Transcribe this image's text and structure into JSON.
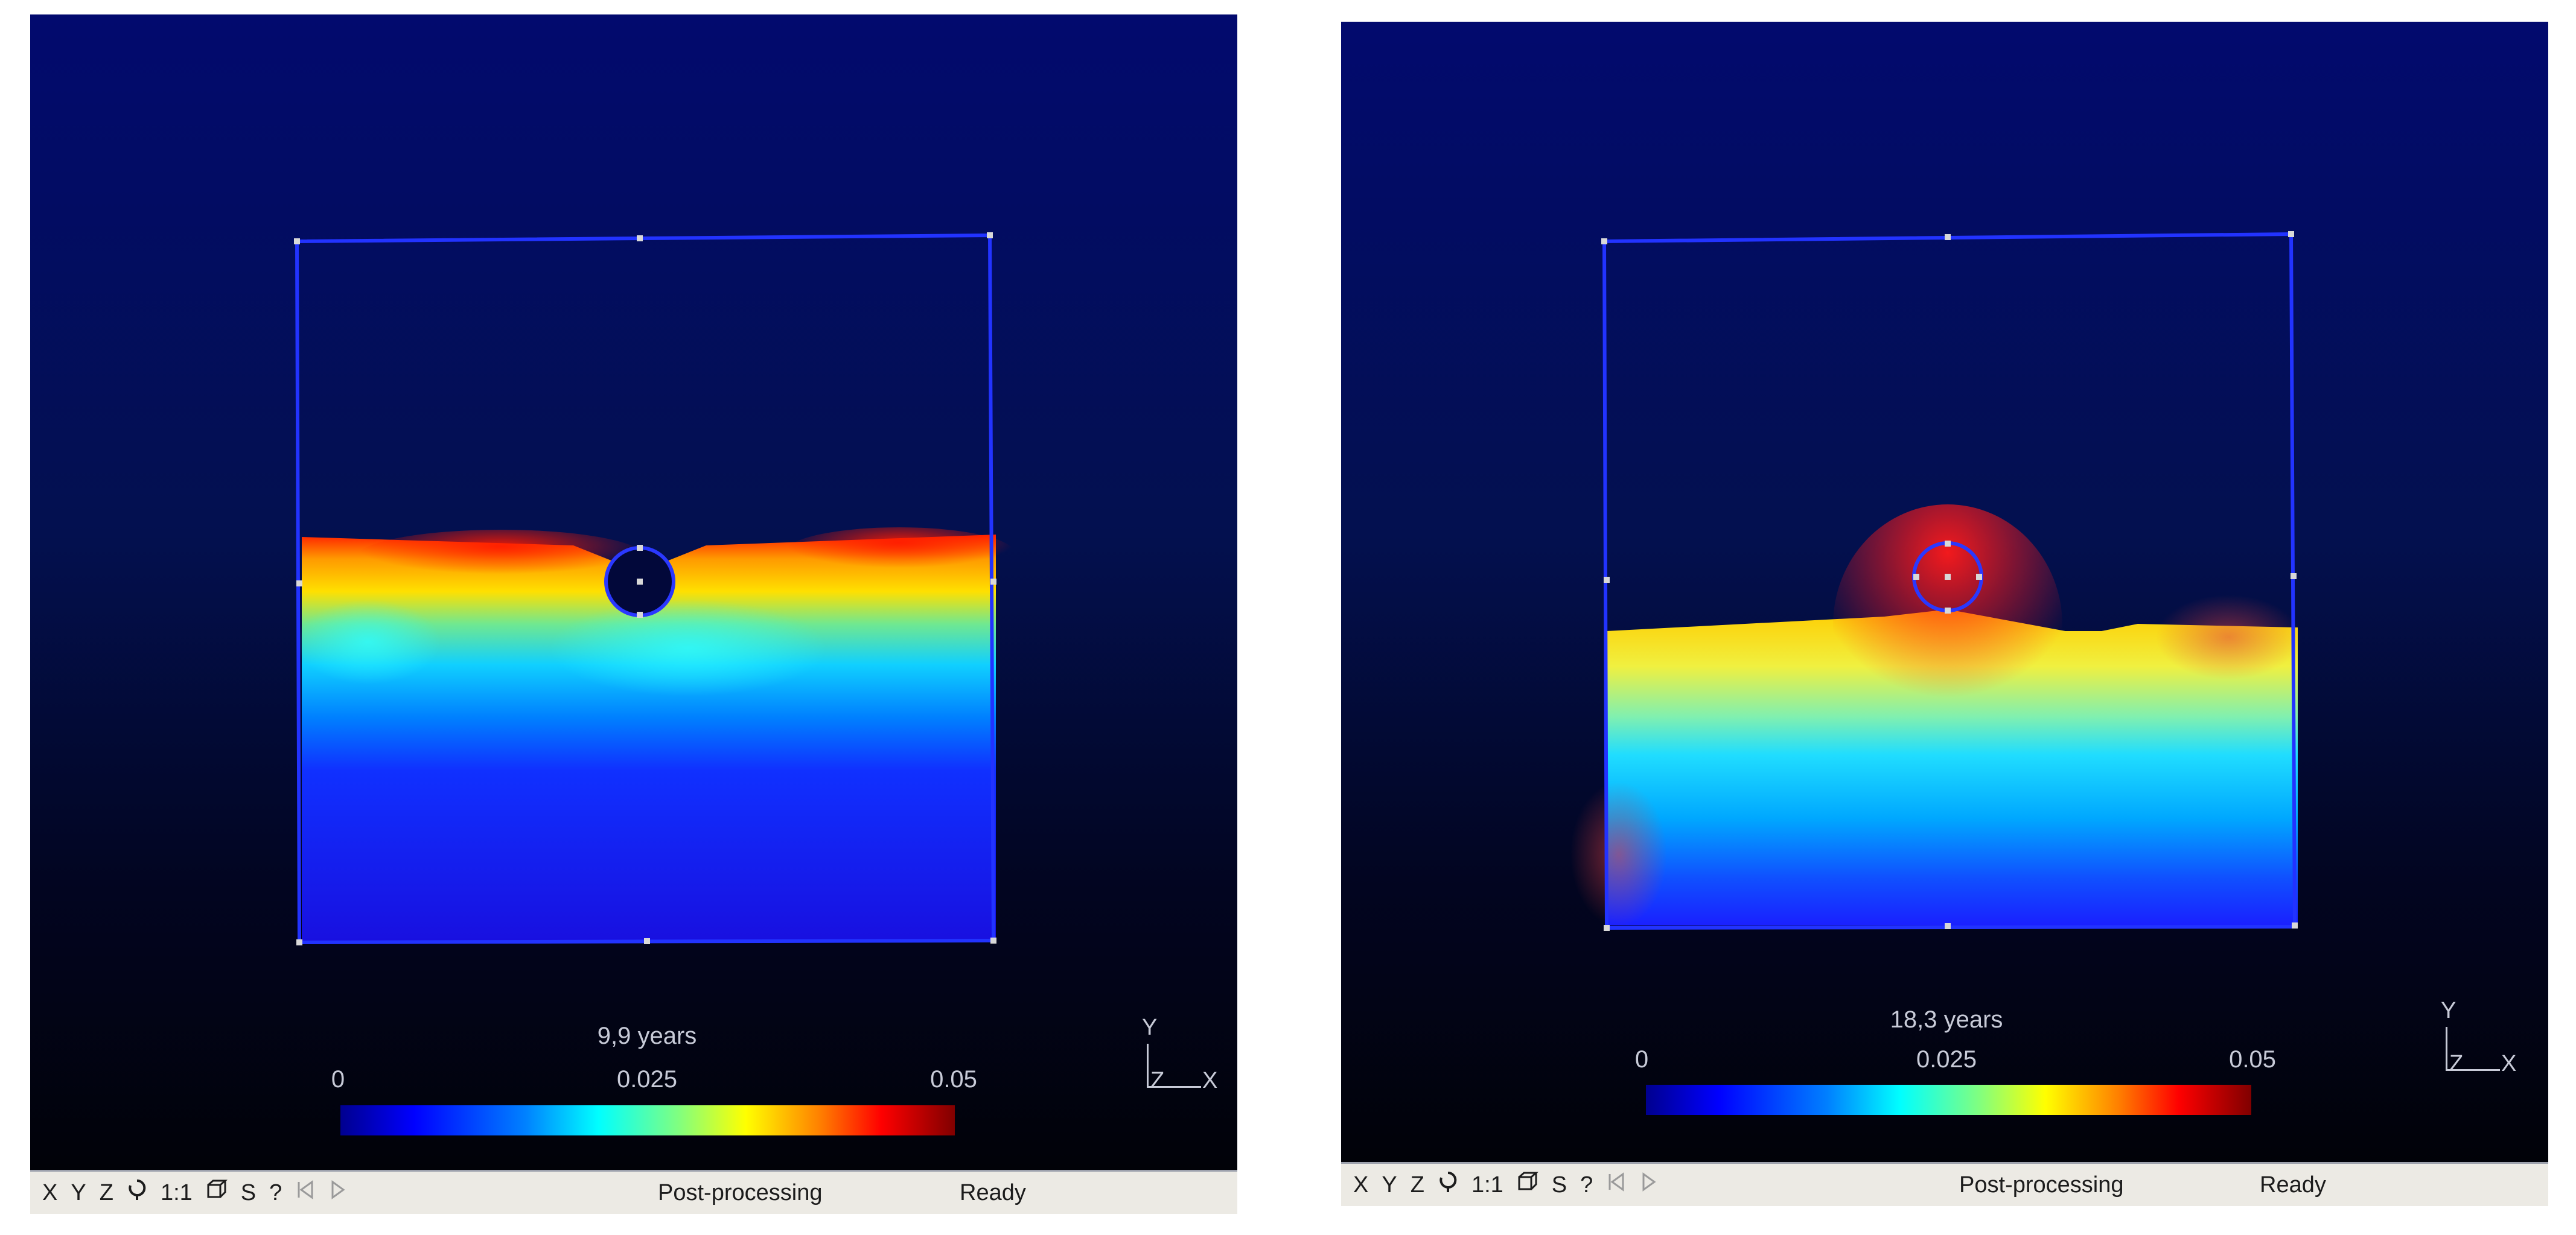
{
  "panels": [
    {
      "sim_label": "9,9 years",
      "colorbar_ticks": [
        "0",
        "0.025",
        "0.05"
      ],
      "axis_labels": {
        "y": "Y",
        "z": "Z",
        "x": "X"
      },
      "status_mode": "Post-processing",
      "status_state": "Ready"
    },
    {
      "sim_label": "18,3 years",
      "colorbar_ticks": [
        "0",
        "0.025",
        "0.05"
      ],
      "axis_labels": {
        "y": "Y",
        "z": "Z",
        "x": "X"
      },
      "status_mode": "Post-processing",
      "status_state": "Ready"
    }
  ],
  "toolbar": {
    "x_label": "X",
    "y_label": "Y",
    "z_label": "Z",
    "rotate_icon": "rotate-icon",
    "scale_label": "1:1",
    "view3d_icon": "cube-icon",
    "s_label": "S",
    "help_label": "?",
    "first_frame_icon": "first-frame-icon",
    "play_icon": "play-icon"
  },
  "colors": {
    "mesh_outline": "#2233ff",
    "node": "#d8d8d8",
    "background_top": "#020a6e",
    "background_bottom": "#010208"
  }
}
